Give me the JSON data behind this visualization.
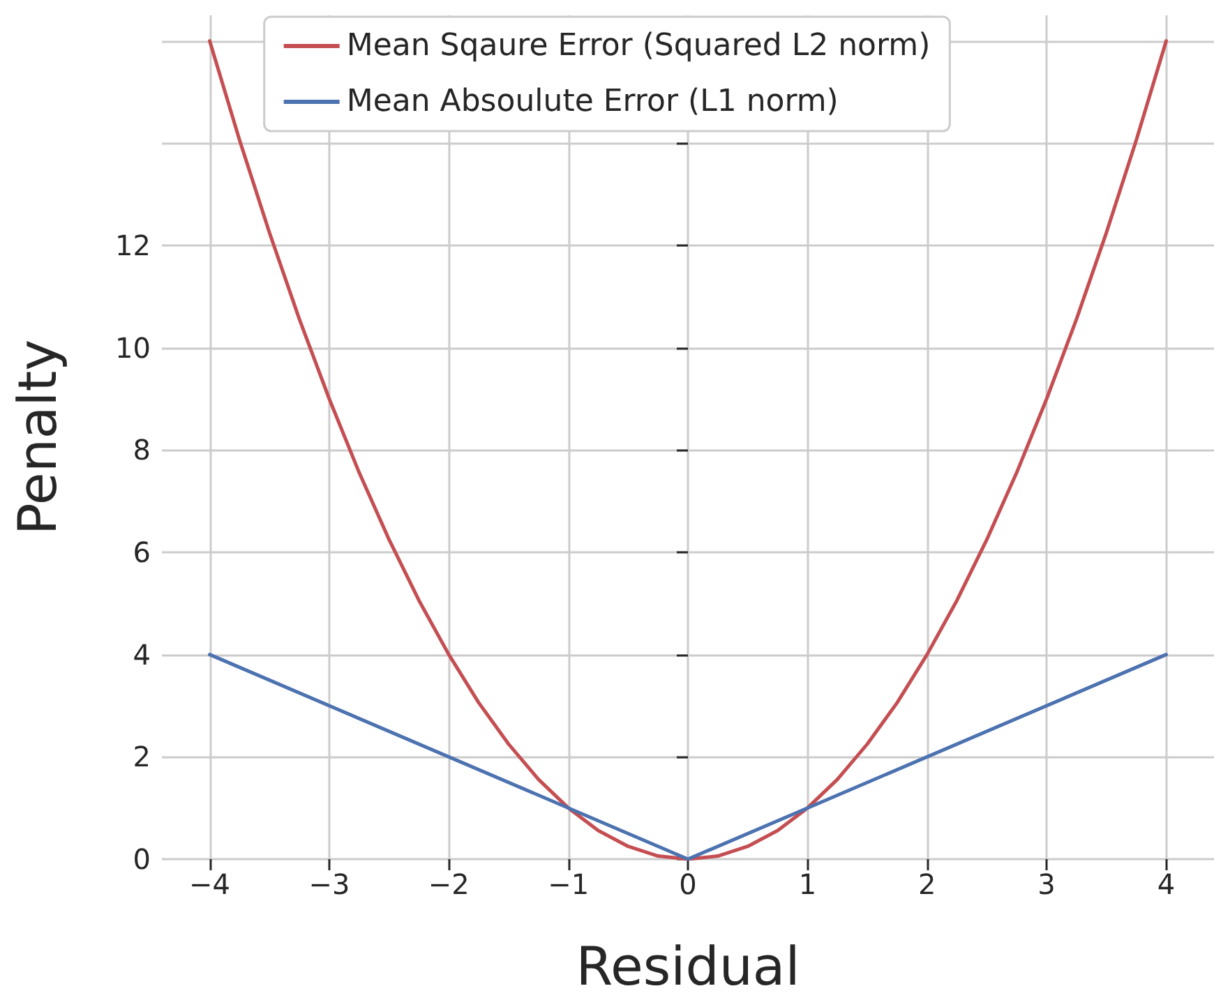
{
  "chart_data": {
    "type": "line",
    "xlabel": "Residual",
    "ylabel": "Penalty",
    "series": [
      {
        "name": "Mean Sqaure Error (Squared L2 norm)",
        "color": "#c44e52",
        "x": [
          -4,
          -3.75,
          -3.5,
          -3.25,
          -3,
          -2.75,
          -2.5,
          -2.25,
          -2,
          -1.75,
          -1.5,
          -1.25,
          -1,
          -0.75,
          -0.5,
          -0.25,
          0,
          0.25,
          0.5,
          0.75,
          1,
          1.25,
          1.5,
          1.75,
          2,
          2.25,
          2.5,
          2.75,
          3,
          3.25,
          3.5,
          3.75,
          4
        ],
        "values": [
          16,
          14.06,
          12.25,
          10.56,
          9,
          7.56,
          6.25,
          5.06,
          4,
          3.06,
          2.25,
          1.56,
          1,
          0.56,
          0.25,
          0.06,
          0,
          0.06,
          0.25,
          0.56,
          1,
          1.56,
          2.25,
          3.06,
          4,
          5.06,
          6.25,
          7.56,
          9,
          10.56,
          12.25,
          14.06,
          16
        ]
      },
      {
        "name": "Mean Absoulute Error (L1 norm)",
        "color": "#4c72b0",
        "x": [
          -4,
          0,
          4
        ],
        "values": [
          4,
          0,
          4
        ]
      }
    ],
    "xlim": [
      -4.4,
      4.4
    ],
    "xticks": [
      -4,
      -3,
      -2,
      -1,
      0,
      1,
      2,
      3,
      4
    ],
    "ylim": [
      0,
      16.5
    ],
    "yticks": [
      0,
      2,
      4,
      6,
      8,
      10,
      12,
      {
        "value": 14,
        "label": null
      },
      {
        "value": 16,
        "label": null
      }
    ],
    "grid": true,
    "legend": "top",
    "marker": "none",
    "line_style": "solid"
  }
}
